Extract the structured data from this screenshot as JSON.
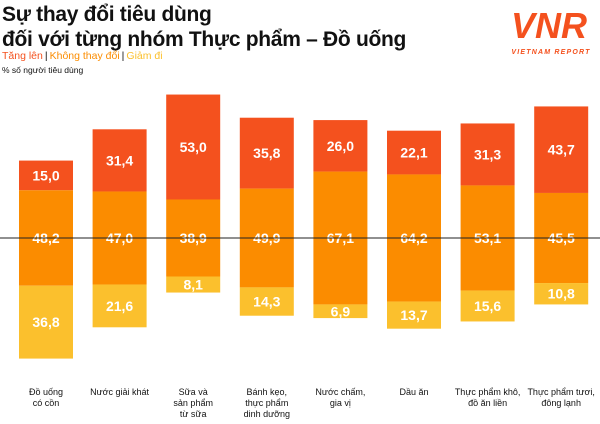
{
  "title_line1": "Sự thay đổi tiêu dùng",
  "title_line2": "đối với từng nhóm Thực phẩm – Đồ uống",
  "logo_text": "VNR",
  "logo_subtext": "VIETNAM REPORT",
  "colors": {
    "increase": "#f4511e",
    "unchanged": "#fb8c00",
    "decrease": "#fbc02d",
    "axis": "#222222"
  },
  "chart_data": {
    "type": "bar",
    "stacked": true,
    "title": "Sự thay đổi tiêu dùng đối với từng nhóm Thực phẩm – Đồ uống",
    "ylabel": "% số người tiêu dùng",
    "legend": [
      "Tăng lên",
      "Không thay đổi",
      "Giảm đi"
    ],
    "legend_placement": "top-left",
    "categories": [
      "Đồ uống có cồn",
      "Nước giải khát",
      "Sữa và sản phẩm từ sữa",
      "Bánh kẹo, thực phẩm dinh dưỡng",
      "Nước chấm, gia vị",
      "Dầu ăn",
      "Thực phẩm khô, đồ ăn liền",
      "Thực phẩm tươi, đông lạnh"
    ],
    "category_lines": [
      [
        "Đồ uống",
        "có cồn"
      ],
      [
        "Nước giải khát"
      ],
      [
        "Sữa và",
        "sản phẩm",
        "từ sữa"
      ],
      [
        "Bánh kẹo,",
        "thực phẩm",
        "dinh dưỡng"
      ],
      [
        "Nước chấm,",
        "gia vị"
      ],
      [
        "Dầu ăn"
      ],
      [
        "Thực phẩm khô,",
        "đồ ăn liền"
      ],
      [
        "Thực phẩm tươi,",
        "đông lạnh"
      ]
    ],
    "series": [
      {
        "name": "Tăng lên",
        "values": [
          15.0,
          31.4,
          53.0,
          35.8,
          26.0,
          22.1,
          31.3,
          43.7
        ],
        "labels": [
          "15,0",
          "31,4",
          "53,0",
          "35,8",
          "26,0",
          "22,1",
          "31,3",
          "43,7"
        ]
      },
      {
        "name": "Không thay đổi",
        "values": [
          48.2,
          47.0,
          38.9,
          49.9,
          67.1,
          64.2,
          53.1,
          45.5
        ],
        "labels": [
          "48,2",
          "47,0",
          "38,9",
          "49,9",
          "67,1",
          "64,2",
          "53,1",
          "45,5"
        ]
      },
      {
        "name": "Giảm đi",
        "values": [
          36.8,
          21.6,
          8.1,
          14.3,
          6.9,
          13.7,
          15.6,
          10.8
        ],
        "labels": [
          "36,8",
          "21,6",
          "8,1",
          "14,3",
          "6,9",
          "13,7",
          "15,6",
          "10,8"
        ]
      }
    ],
    "grid": false
  }
}
